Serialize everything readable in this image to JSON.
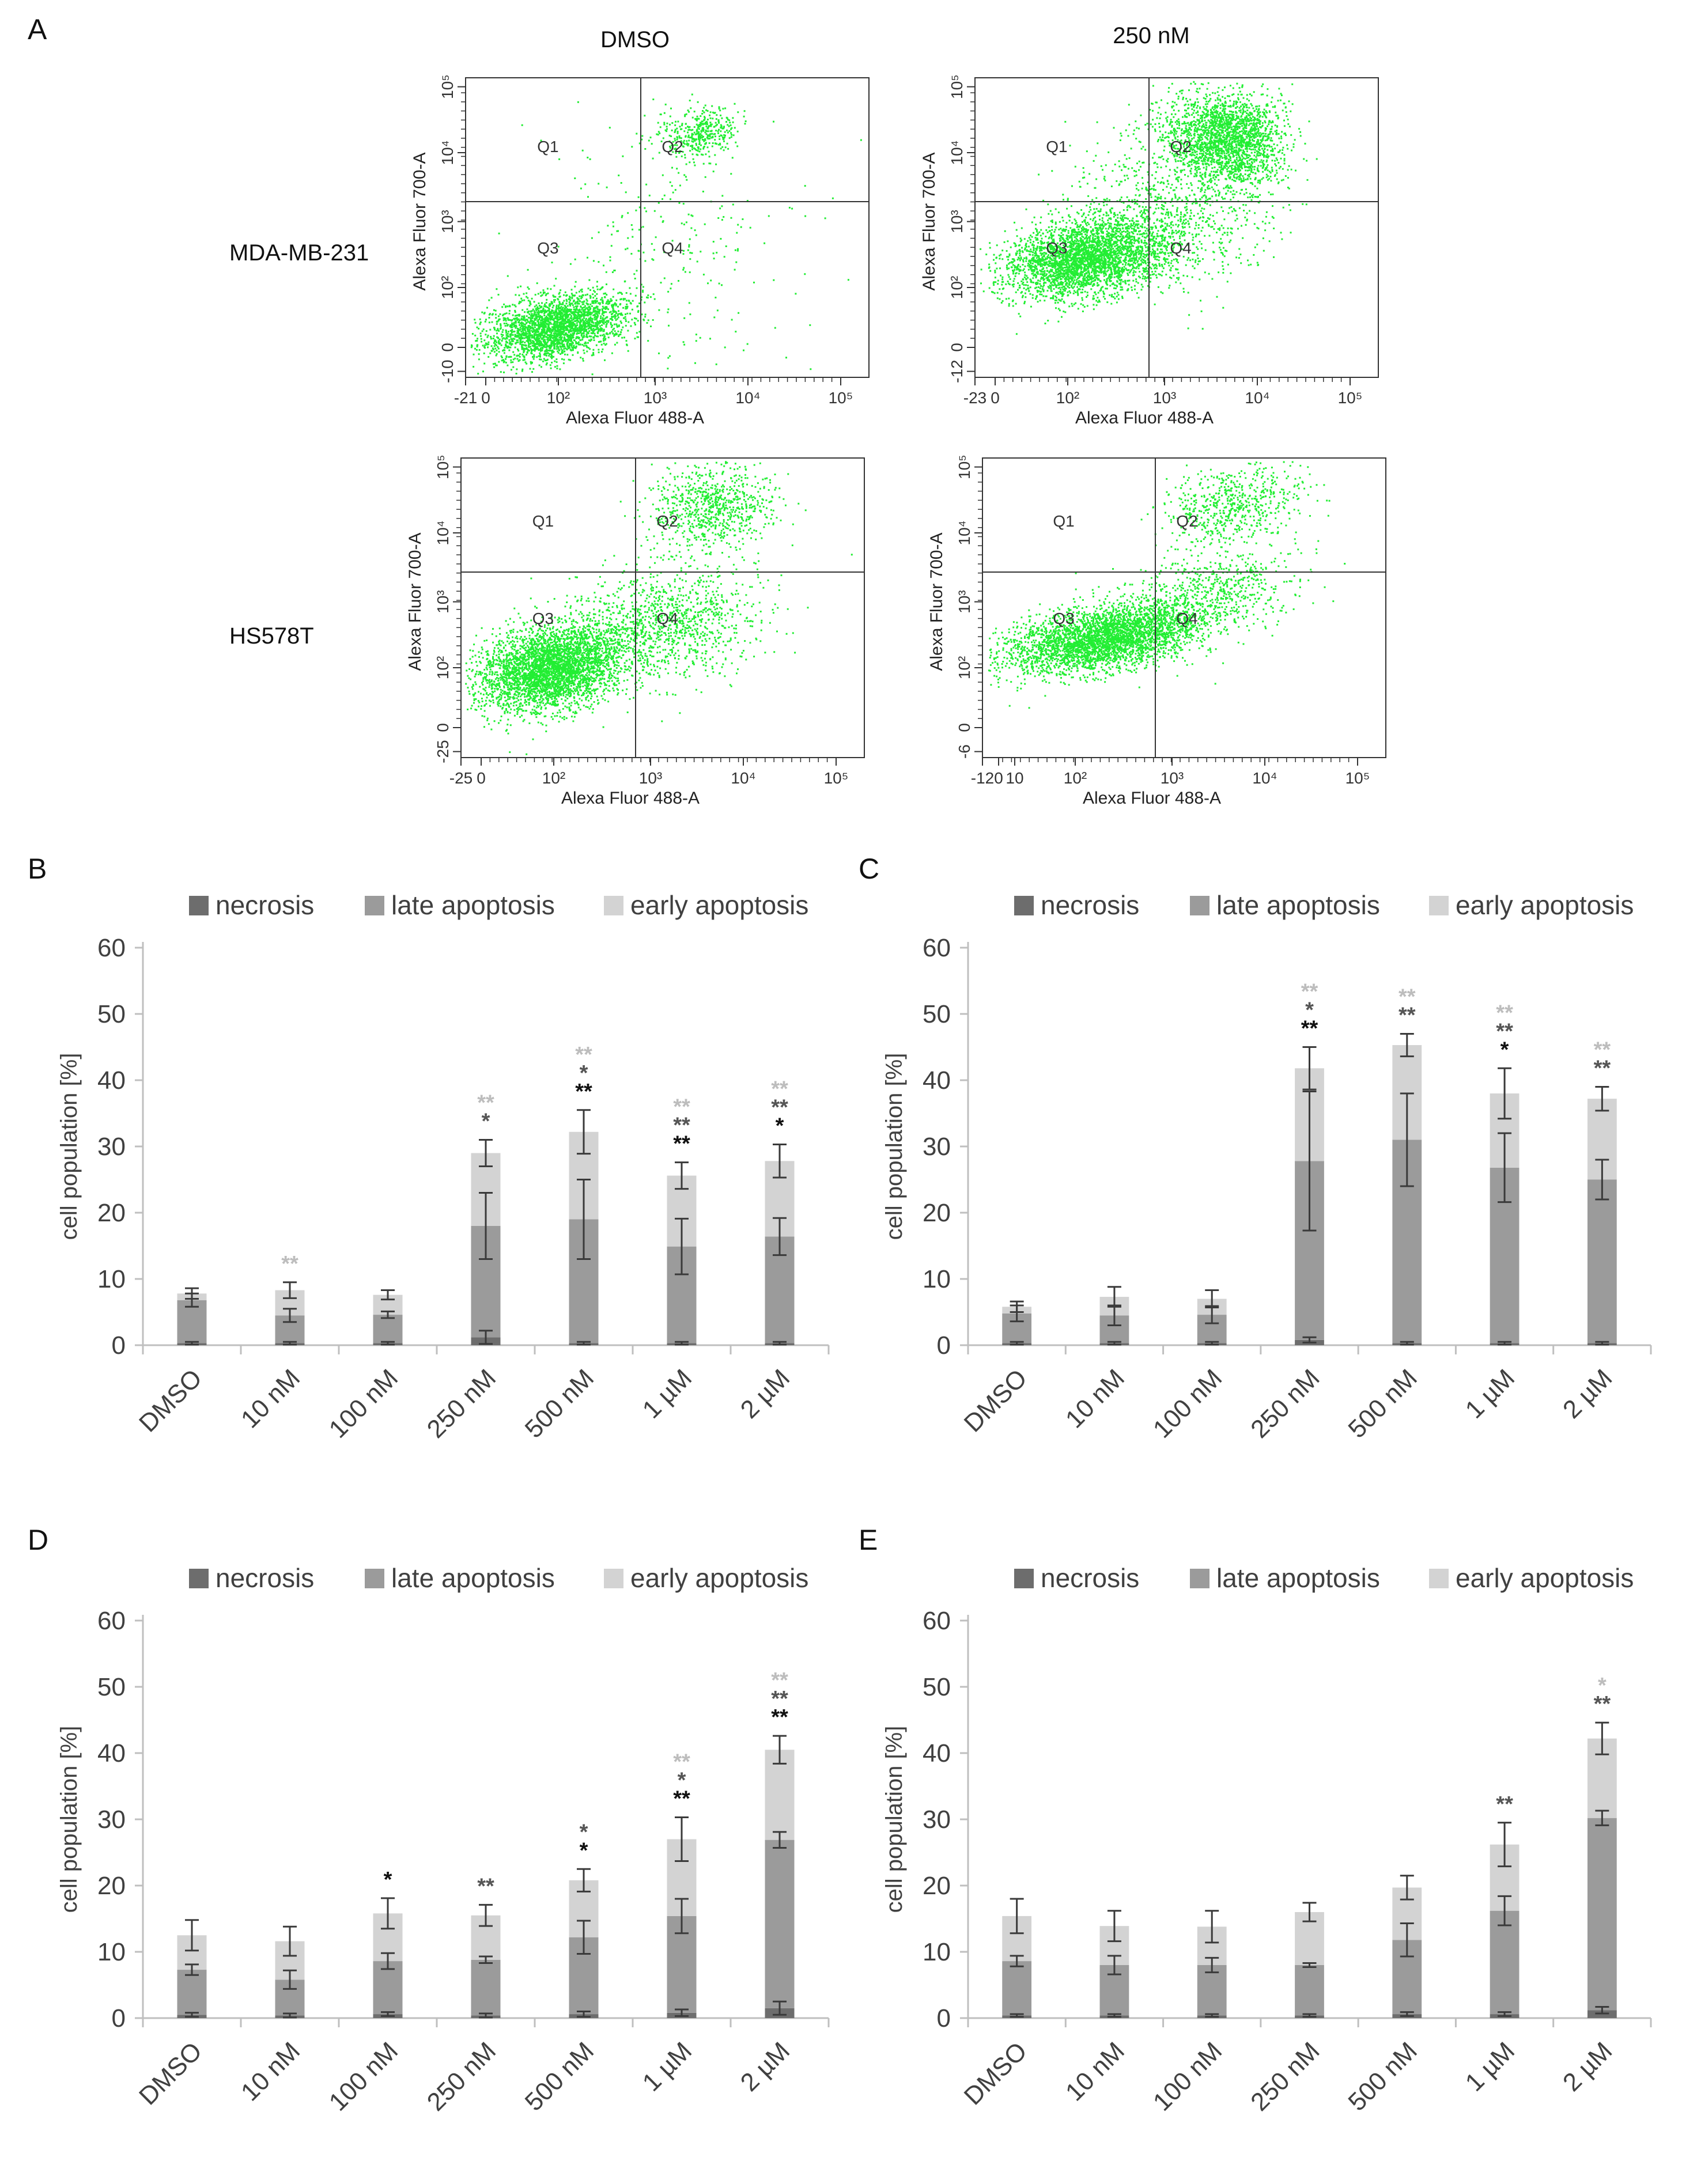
{
  "figure": {
    "letters": {
      "A": "A",
      "B": "B",
      "C": "C",
      "D": "D",
      "E": "E"
    },
    "flow": {
      "col_heads": [
        "DMSO",
        "250 nM"
      ],
      "row_heads": [
        "MDA-MB-231",
        "HS578T"
      ],
      "xlabel": "Alexa Fluor 488-A",
      "ylabel": "Alexa Fluor 700-A",
      "quadrants": [
        "Q1",
        "Q2",
        "Q3",
        "Q4"
      ],
      "point_color": "#22ee33",
      "plots": [
        {
          "x_ticks": [
            "-21",
            "0",
            "10²",
            "10³",
            "10⁴",
            "10⁵"
          ],
          "y_ticks": [
            "-10",
            "0",
            "10²",
            "10³",
            "10⁴",
            "10⁵"
          ]
        },
        {
          "x_ticks": [
            "-23",
            "0",
            "10²",
            "10³",
            "10⁴",
            "10⁵"
          ],
          "y_ticks": [
            "-12",
            "0",
            "10²",
            "10³",
            "10⁴",
            "10⁵"
          ]
        },
        {
          "x_ticks": [
            "-25",
            "0",
            "10²",
            "10³",
            "10⁴",
            "10⁵"
          ],
          "y_ticks": [
            "-25",
            "0",
            "10²",
            "10³",
            "10⁴",
            "10⁵"
          ]
        },
        {
          "x_ticks": [
            "-12",
            "0",
            "10",
            "10²",
            "10³",
            "10⁴",
            "10⁵"
          ],
          "y_ticks": [
            "-6",
            "0",
            "10²",
            "10³",
            "10⁴",
            "10⁵"
          ]
        }
      ]
    }
  },
  "chart_data": [
    {
      "panel": "B",
      "type": "bar",
      "stacked": true,
      "categories": [
        "DMSO",
        "10 nM",
        "100 nM",
        "250 nM",
        "500 nM",
        "1 µM",
        "2 µM"
      ],
      "series": [
        {
          "name": "necrosis",
          "values": [
            0.3,
            0.3,
            0.3,
            1.2,
            0.3,
            0.3,
            0.3
          ],
          "errors": [
            0.2,
            0.2,
            0.2,
            1.0,
            0.2,
            0.2,
            0.2
          ]
        },
        {
          "name": "late apoptosis",
          "values": [
            6.5,
            4.2,
            4.3,
            16.8,
            18.7,
            14.6,
            16.1
          ],
          "errors": [
            1.0,
            1.0,
            0.5,
            5.0,
            6.0,
            4.2,
            2.8
          ]
        },
        {
          "name": "early apoptosis",
          "values": [
            1.0,
            3.8,
            3.0,
            11.0,
            13.2,
            10.7,
            11.4
          ],
          "errors": [
            0.8,
            1.2,
            0.7,
            2.0,
            3.3,
            2.0,
            2.5
          ]
        }
      ],
      "ylabel": "cell population [%]",
      "ylim": [
        0,
        60
      ],
      "yticks": [
        0,
        10,
        20,
        30,
        40,
        50,
        60
      ],
      "legend": "top",
      "significance": [
        {
          "category": "10 nM",
          "marks": [
            {
              "text": "**",
              "series": "early apoptosis"
            }
          ]
        },
        {
          "category": "250 nM",
          "marks": [
            {
              "text": "**",
              "series": "early apoptosis"
            },
            {
              "text": "*",
              "series": "late apoptosis"
            }
          ]
        },
        {
          "category": "500 nM",
          "marks": [
            {
              "text": "**",
              "series": "early apoptosis"
            },
            {
              "text": "*",
              "series": "late apoptosis"
            },
            {
              "text": "**",
              "series": "necrosis"
            }
          ]
        },
        {
          "category": "1 µM",
          "marks": [
            {
              "text": "**",
              "series": "early apoptosis"
            },
            {
              "text": "**",
              "series": "late apoptosis"
            },
            {
              "text": "**",
              "series": "necrosis"
            }
          ]
        },
        {
          "category": "2 µM",
          "marks": [
            {
              "text": "**",
              "series": "early apoptosis"
            },
            {
              "text": "**",
              "series": "late apoptosis"
            },
            {
              "text": "*",
              "series": "necrosis"
            }
          ]
        }
      ]
    },
    {
      "panel": "C",
      "type": "bar",
      "stacked": true,
      "categories": [
        "DMSO",
        "10 nM",
        "100 nM",
        "250 nM",
        "500 nM",
        "1 µM",
        "2 µM"
      ],
      "series": [
        {
          "name": "necrosis",
          "values": [
            0.3,
            0.3,
            0.3,
            0.8,
            0.3,
            0.3,
            0.3
          ],
          "errors": [
            0.2,
            0.2,
            0.2,
            0.4,
            0.2,
            0.2,
            0.2
          ]
        },
        {
          "name": "late apoptosis",
          "values": [
            4.5,
            4.2,
            4.3,
            27.0,
            30.7,
            26.5,
            24.7
          ],
          "errors": [
            1.2,
            1.5,
            1.3,
            10.5,
            7.0,
            5.2,
            3.0
          ]
        },
        {
          "name": "early apoptosis",
          "values": [
            1.0,
            2.8,
            2.4,
            14.0,
            14.3,
            11.2,
            12.2
          ],
          "errors": [
            0.8,
            1.5,
            1.3,
            3.2,
            1.7,
            3.8,
            1.8
          ]
        }
      ],
      "ylabel": "cell population [%]",
      "ylim": [
        0,
        60
      ],
      "yticks": [
        0,
        10,
        20,
        30,
        40,
        50,
        60
      ],
      "legend": "top",
      "significance": [
        {
          "category": "250 nM",
          "marks": [
            {
              "text": "**",
              "series": "early apoptosis"
            },
            {
              "text": "*",
              "series": "late apoptosis"
            },
            {
              "text": "**",
              "series": "necrosis"
            }
          ]
        },
        {
          "category": "500 nM",
          "marks": [
            {
              "text": "**",
              "series": "early apoptosis"
            },
            {
              "text": "**",
              "series": "late apoptosis"
            }
          ]
        },
        {
          "category": "1 µM",
          "marks": [
            {
              "text": "**",
              "series": "early apoptosis"
            },
            {
              "text": "**",
              "series": "late apoptosis"
            },
            {
              "text": "*",
              "series": "necrosis"
            }
          ]
        },
        {
          "category": "2 µM",
          "marks": [
            {
              "text": "**",
              "series": "early apoptosis"
            },
            {
              "text": "**",
              "series": "late apoptosis"
            }
          ]
        }
      ]
    },
    {
      "panel": "D",
      "type": "bar",
      "stacked": true,
      "categories": [
        "DMSO",
        "10 nM",
        "100 nM",
        "250 nM",
        "500 nM",
        "1 µM",
        "2 µM"
      ],
      "series": [
        {
          "name": "necrosis",
          "values": [
            0.5,
            0.4,
            0.6,
            0.4,
            0.6,
            0.8,
            1.5
          ],
          "errors": [
            0.3,
            0.3,
            0.3,
            0.3,
            0.4,
            0.5,
            1.0
          ]
        },
        {
          "name": "late apoptosis",
          "values": [
            6.8,
            5.4,
            8.0,
            8.4,
            11.6,
            14.6,
            25.4
          ],
          "errors": [
            0.8,
            1.4,
            1.2,
            0.5,
            2.5,
            2.6,
            1.2
          ]
        },
        {
          "name": "early apoptosis",
          "values": [
            5.2,
            5.8,
            7.2,
            6.7,
            8.6,
            11.6,
            13.6
          ],
          "errors": [
            2.3,
            2.2,
            2.3,
            1.6,
            1.7,
            3.3,
            2.1
          ]
        }
      ],
      "ylabel": "cell population [%]",
      "ylim": [
        0,
        60
      ],
      "yticks": [
        0,
        10,
        20,
        30,
        40,
        50,
        60
      ],
      "legend": "top",
      "significance": [
        {
          "category": "100 nM",
          "marks": [
            {
              "text": "*",
              "series": "necrosis"
            }
          ]
        },
        {
          "category": "250 nM",
          "marks": [
            {
              "text": "**",
              "series": "late apoptosis"
            }
          ]
        },
        {
          "category": "500 nM",
          "marks": [
            {
              "text": "*",
              "series": "late apoptosis"
            },
            {
              "text": "*",
              "series": "necrosis"
            }
          ]
        },
        {
          "category": "1 µM",
          "marks": [
            {
              "text": "**",
              "series": "early apoptosis"
            },
            {
              "text": "*",
              "series": "late apoptosis"
            },
            {
              "text": "**",
              "series": "necrosis"
            }
          ]
        },
        {
          "category": "2 µM",
          "marks": [
            {
              "text": "**",
              "series": "early apoptosis"
            },
            {
              "text": "**",
              "series": "late apoptosis"
            },
            {
              "text": "**",
              "series": "necrosis"
            }
          ]
        }
      ]
    },
    {
      "panel": "E",
      "type": "bar",
      "stacked": true,
      "categories": [
        "DMSO",
        "10 nM",
        "100 nM",
        "250 nM",
        "500 nM",
        "1 µM",
        "2 µM"
      ],
      "series": [
        {
          "name": "necrosis",
          "values": [
            0.4,
            0.4,
            0.4,
            0.4,
            0.6,
            0.6,
            1.2
          ],
          "errors": [
            0.2,
            0.2,
            0.2,
            0.2,
            0.3,
            0.3,
            0.5
          ]
        },
        {
          "name": "late apoptosis",
          "values": [
            8.2,
            7.6,
            7.6,
            7.6,
            11.2,
            15.6,
            29.0
          ],
          "errors": [
            0.8,
            1.4,
            1.1,
            0.3,
            2.5,
            2.2,
            1.1
          ]
        },
        {
          "name": "early apoptosis",
          "values": [
            6.8,
            5.9,
            5.8,
            8.0,
            7.9,
            10.0,
            12.0
          ],
          "errors": [
            2.6,
            2.3,
            2.4,
            1.4,
            1.8,
            3.3,
            2.4
          ]
        }
      ],
      "ylabel": "cell population [%]",
      "ylim": [
        0,
        60
      ],
      "yticks": [
        0,
        10,
        20,
        30,
        40,
        50,
        60
      ],
      "legend": "top",
      "significance": [
        {
          "category": "1 µM",
          "marks": [
            {
              "text": "**",
              "series": "late apoptosis"
            }
          ]
        },
        {
          "category": "2 µM",
          "marks": [
            {
              "text": "*",
              "series": "early apoptosis"
            },
            {
              "text": "**",
              "series": "late apoptosis"
            }
          ]
        }
      ]
    }
  ],
  "colors": {
    "necrosis": "#6d6d6d",
    "late apoptosis": "#9b9b9b",
    "early apoptosis": "#d3d3d3",
    "axis": "#bfbfbf",
    "error_bar": "#3a3a3a",
    "sig_necrosis": "#111111",
    "sig_late": "#555555",
    "sig_early": "#bdbdbd"
  }
}
